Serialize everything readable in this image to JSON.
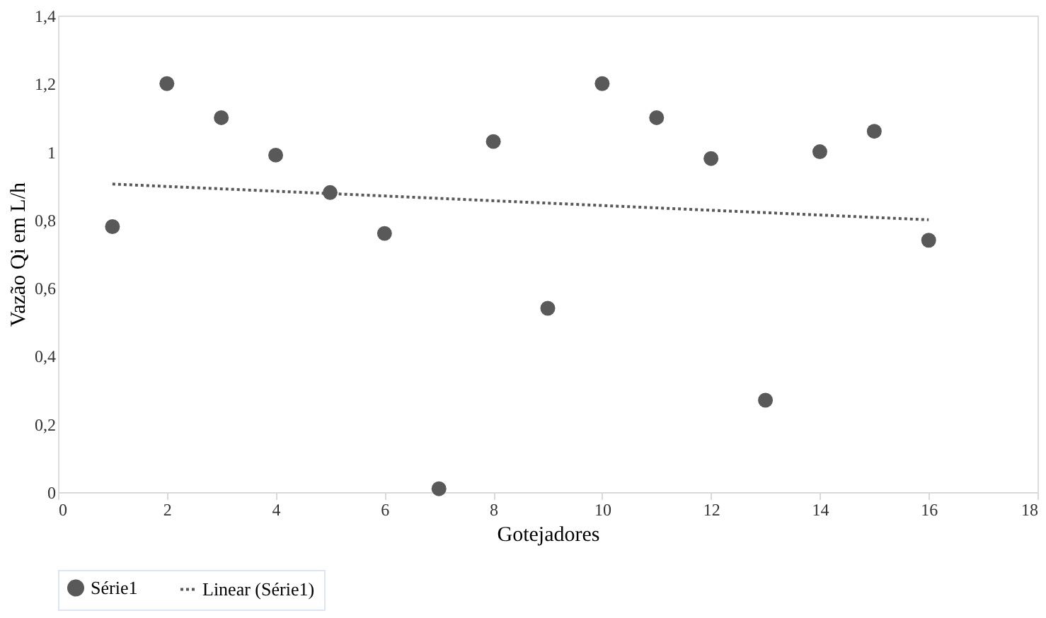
{
  "chart_data": {
    "type": "scatter",
    "xlabel": "Gotejadores",
    "ylabel": "Vazão Qi em L/h",
    "xlim": [
      0,
      18
    ],
    "xticks": [
      0,
      2,
      4,
      6,
      8,
      10,
      12,
      14,
      16,
      18
    ],
    "ylim": [
      0,
      1.4
    ],
    "yticks": [
      0,
      {
        "value": 0.2,
        "label": "0,2"
      },
      {
        "value": 0.4,
        "label": "0,4"
      },
      {
        "value": 0.6,
        "label": "0,6"
      },
      {
        "value": 0.8,
        "label": "0,8"
      },
      1,
      {
        "value": 1.2,
        "label": "1,2"
      },
      {
        "value": 1.4,
        "label": "1,4"
      }
    ],
    "grid": false,
    "legend": "bottom",
    "series": [
      {
        "name": "Série1",
        "marker": "circle",
        "color": "#595959",
        "x": [
          1,
          2,
          3,
          4,
          5,
          6,
          7,
          8,
          9,
          10,
          11,
          12,
          13,
          14,
          15,
          16
        ],
        "values": [
          0.78,
          1.2,
          1.1,
          0.99,
          0.88,
          0.76,
          0.01,
          1.03,
          0.54,
          1.2,
          1.1,
          0.98,
          0.27,
          1.0,
          1.06,
          0.74
        ]
      },
      {
        "name": "Linear (Série1)",
        "type": "line",
        "marker": "none",
        "color": "#595959",
        "line_style": "dotted",
        "x": [
          1,
          16
        ],
        "values": [
          0.905,
          0.8
        ]
      }
    ]
  }
}
